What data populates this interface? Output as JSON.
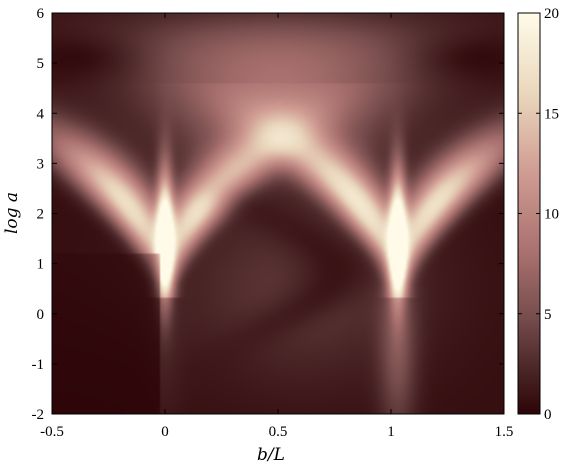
{
  "chart_data": {
    "type": "heatmap",
    "title": "",
    "xlabel": "b/L",
    "ylabel": "log a",
    "xlim": [
      -0.5,
      1.5
    ],
    "ylim": [
      -2,
      6
    ],
    "x_ticks": [
      "-0.5",
      "0",
      "0.5",
      "1",
      "1.5"
    ],
    "y_ticks": [
      "-2",
      "-1",
      "0",
      "1",
      "2",
      "3",
      "4",
      "5",
      "6"
    ],
    "x_tick_values": [
      -0.5,
      0,
      0.5,
      1,
      1.5
    ],
    "y_tick_values": [
      -2,
      -1,
      0,
      1,
      2,
      3,
      4,
      5,
      6
    ],
    "colorbar": {
      "range": [
        0,
        20
      ],
      "ticks": [
        "0",
        "5",
        "10",
        "15",
        "20"
      ],
      "tick_values": [
        0,
        5,
        10,
        15,
        20
      ],
      "colors": [
        "#2d0508",
        "#4f2a2b",
        "#7a4f4f",
        "#a8706e",
        "#cf9b92",
        "#ead7bd",
        "#fffbe8"
      ],
      "color_stops": [
        0,
        2.5,
        5,
        8,
        12,
        16,
        20
      ]
    },
    "regions": [
      {
        "feature": "sharp peak near b/L = 0",
        "b_over_L": 0.0,
        "log_a_range": [
          0.5,
          3.5
        ],
        "max_value": 20
      },
      {
        "feature": "sharp peak near b/L = 1",
        "b_over_L": 1.05,
        "log_a_range": [
          0.5,
          3.5
        ],
        "max_value": 20
      },
      {
        "feature": "broad moderate band at top",
        "log_a_range": [
          4,
          6
        ],
        "value_approx": 7
      },
      {
        "feature": "low-value region left of b/L = 0",
        "log_a_range": [
          -2,
          1
        ],
        "value_approx": 0.5
      }
    ]
  }
}
